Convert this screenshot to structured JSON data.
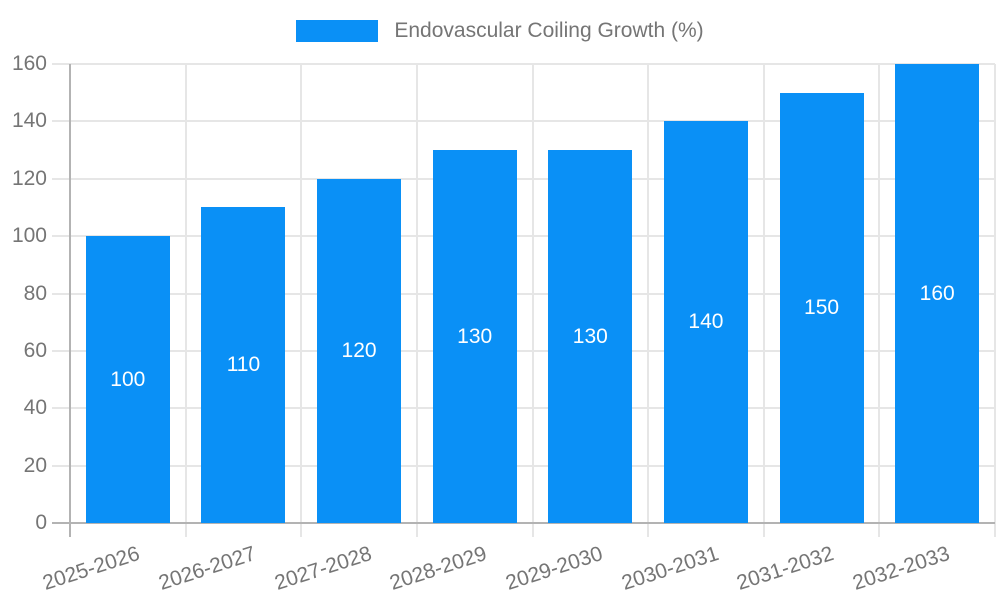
{
  "legend": {
    "label": "Endovascular Coiling Growth (%)",
    "position": "top-center"
  },
  "chart_data": {
    "type": "bar",
    "title": "Endovascular Coiling Growth (%)",
    "series_name": "Endovascular Coiling Growth (%)",
    "categories": [
      "2025-2026",
      "2026-2027",
      "2027-2028",
      "2028-2029",
      "2029-2030",
      "2030-2031",
      "2031-2032",
      "2032-2033"
    ],
    "values": [
      100,
      110,
      120,
      130,
      130,
      140,
      150,
      160
    ],
    "bar_value_labels": [
      "100",
      "110",
      "120",
      "130",
      "130",
      "140",
      "150",
      "160"
    ],
    "xlabel": "",
    "ylabel": "",
    "ylim": [
      0,
      160
    ],
    "y_ticks": [
      0,
      20,
      40,
      60,
      80,
      100,
      120,
      140,
      160
    ],
    "grid": true,
    "x_label_rotation_deg": -18,
    "legend_position": "top-center"
  },
  "colors": {
    "bar": "#0a90f6",
    "bar_label_text": "#ffffff",
    "axis_text": "#757575",
    "gridline": "#e6e6e6",
    "axis_line": "#b3b3b3",
    "background": "#ffffff"
  }
}
